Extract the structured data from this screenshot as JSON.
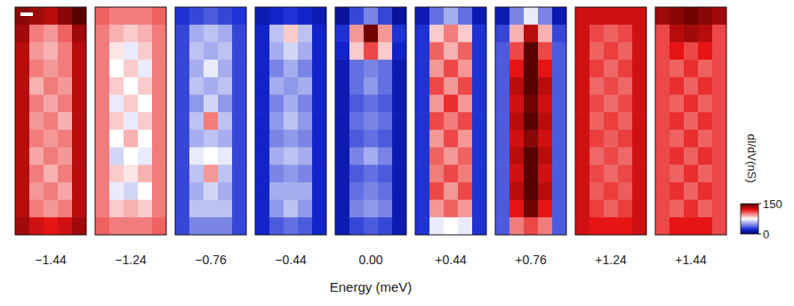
{
  "chart_data": {
    "type": "heatmap",
    "x_label": "Energy (meV)",
    "colorbar": {
      "label": "dI/dV(nS)",
      "range": [
        0,
        150
      ],
      "ticks": [
        0,
        150
      ]
    },
    "panels": [
      {
        "energy": -1.44,
        "label": "−1.44",
        "cells": [
          [
            140,
            135,
            130,
            140,
            150
          ],
          [
            135,
            100,
            95,
            105,
            135
          ],
          [
            130,
            95,
            90,
            100,
            130
          ],
          [
            130,
            100,
            95,
            100,
            130
          ],
          [
            130,
            90,
            100,
            95,
            130
          ],
          [
            130,
            100,
            92,
            100,
            130
          ],
          [
            130,
            95,
            100,
            90,
            130
          ],
          [
            130,
            100,
            95,
            100,
            130
          ],
          [
            130,
            92,
            100,
            95,
            130
          ],
          [
            130,
            100,
            90,
            100,
            130
          ],
          [
            130,
            95,
            100,
            92,
            130
          ],
          [
            130,
            100,
            95,
            100,
            130
          ],
          [
            135,
            125,
            120,
            125,
            135
          ]
        ]
      },
      {
        "energy": -1.24,
        "label": "−1.24",
        "cells": [
          [
            105,
            100,
            100,
            100,
            105
          ],
          [
            100,
            90,
            85,
            90,
            100
          ],
          [
            100,
            80,
            70,
            85,
            100
          ],
          [
            100,
            75,
            85,
            70,
            100
          ],
          [
            100,
            85,
            75,
            85,
            100
          ],
          [
            100,
            70,
            85,
            75,
            100
          ],
          [
            100,
            85,
            70,
            85,
            100
          ],
          [
            100,
            75,
            90,
            75,
            100
          ],
          [
            100,
            65,
            75,
            70,
            100
          ],
          [
            100,
            85,
            80,
            90,
            100
          ],
          [
            100,
            70,
            65,
            75,
            100
          ],
          [
            100,
            85,
            90,
            85,
            100
          ],
          [
            105,
            100,
            100,
            100,
            105
          ]
        ]
      },
      {
        "energy": -0.76,
        "label": "−0.76",
        "cells": [
          [
            25,
            30,
            35,
            30,
            25
          ],
          [
            30,
            55,
            60,
            55,
            30
          ],
          [
            30,
            60,
            55,
            60,
            30
          ],
          [
            30,
            55,
            70,
            55,
            30
          ],
          [
            30,
            60,
            55,
            60,
            30
          ],
          [
            30,
            50,
            65,
            50,
            30
          ],
          [
            30,
            60,
            100,
            60,
            30
          ],
          [
            30,
            55,
            60,
            55,
            30
          ],
          [
            30,
            70,
            75,
            70,
            30
          ],
          [
            30,
            60,
            95,
            60,
            30
          ],
          [
            30,
            55,
            65,
            55,
            30
          ],
          [
            30,
            60,
            60,
            60,
            30
          ],
          [
            30,
            45,
            45,
            45,
            30
          ]
        ]
      },
      {
        "energy": -0.44,
        "label": "−0.44",
        "cells": [
          [
            15,
            20,
            25,
            20,
            15
          ],
          [
            20,
            60,
            85,
            60,
            20
          ],
          [
            20,
            55,
            65,
            55,
            20
          ],
          [
            20,
            45,
            55,
            45,
            20
          ],
          [
            20,
            55,
            50,
            55,
            20
          ],
          [
            20,
            45,
            55,
            45,
            20
          ],
          [
            20,
            50,
            60,
            50,
            20
          ],
          [
            20,
            45,
            50,
            45,
            20
          ],
          [
            20,
            55,
            60,
            55,
            20
          ],
          [
            20,
            45,
            50,
            45,
            20
          ],
          [
            20,
            55,
            55,
            55,
            20
          ],
          [
            20,
            50,
            60,
            50,
            20
          ],
          [
            20,
            35,
            40,
            35,
            20
          ]
        ]
      },
      {
        "energy": 0.0,
        "label": "0.00",
        "cells": [
          [
            10,
            30,
            45,
            30,
            10
          ],
          [
            25,
            95,
            145,
            95,
            25
          ],
          [
            20,
            85,
            110,
            85,
            20
          ],
          [
            15,
            40,
            45,
            40,
            15
          ],
          [
            15,
            40,
            50,
            40,
            15
          ],
          [
            15,
            35,
            40,
            35,
            15
          ],
          [
            15,
            40,
            45,
            40,
            15
          ],
          [
            15,
            35,
            40,
            35,
            15
          ],
          [
            15,
            45,
            55,
            45,
            15
          ],
          [
            15,
            35,
            40,
            35,
            15
          ],
          [
            15,
            40,
            45,
            40,
            15
          ],
          [
            15,
            45,
            50,
            45,
            15
          ],
          [
            15,
            30,
            35,
            30,
            15
          ]
        ]
      },
      {
        "energy": 0.44,
        "label": "+0.44",
        "cells": [
          [
            15,
            40,
            55,
            40,
            15
          ],
          [
            25,
            85,
            100,
            85,
            25
          ],
          [
            25,
            105,
            90,
            105,
            25
          ],
          [
            25,
            95,
            110,
            95,
            25
          ],
          [
            25,
            110,
            95,
            110,
            25
          ],
          [
            25,
            95,
            115,
            95,
            25
          ],
          [
            25,
            110,
            100,
            110,
            25
          ],
          [
            25,
            95,
            110,
            95,
            25
          ],
          [
            25,
            105,
            95,
            105,
            25
          ],
          [
            25,
            100,
            110,
            100,
            25
          ],
          [
            25,
            110,
            95,
            110,
            25
          ],
          [
            25,
            95,
            105,
            95,
            25
          ],
          [
            25,
            70,
            75,
            70,
            25
          ]
        ]
      },
      {
        "energy": 0.76,
        "label": "+0.76",
        "cells": [
          [
            15,
            45,
            70,
            45,
            15
          ],
          [
            30,
            90,
            130,
            90,
            30
          ],
          [
            35,
            110,
            150,
            110,
            35
          ],
          [
            35,
            120,
            150,
            120,
            35
          ],
          [
            35,
            130,
            150,
            130,
            35
          ],
          [
            35,
            125,
            145,
            125,
            35
          ],
          [
            35,
            130,
            150,
            130,
            35
          ],
          [
            35,
            125,
            140,
            125,
            35
          ],
          [
            35,
            130,
            150,
            130,
            35
          ],
          [
            35,
            125,
            150,
            125,
            35
          ],
          [
            35,
            130,
            150,
            130,
            35
          ],
          [
            35,
            120,
            145,
            120,
            35
          ],
          [
            35,
            100,
            110,
            100,
            35
          ]
        ]
      },
      {
        "energy": 1.24,
        "label": "+1.24",
        "cells": [
          [
            125,
            125,
            125,
            125,
            125
          ],
          [
            125,
            110,
            105,
            110,
            125
          ],
          [
            125,
            105,
            112,
            105,
            125
          ],
          [
            125,
            112,
            104,
            112,
            125
          ],
          [
            125,
            104,
            110,
            104,
            125
          ],
          [
            125,
            110,
            103,
            110,
            125
          ],
          [
            125,
            105,
            112,
            105,
            125
          ],
          [
            125,
            112,
            106,
            112,
            125
          ],
          [
            125,
            104,
            110,
            104,
            125
          ],
          [
            125,
            110,
            104,
            110,
            125
          ],
          [
            125,
            106,
            112,
            106,
            125
          ],
          [
            125,
            112,
            105,
            112,
            125
          ],
          [
            125,
            120,
            120,
            120,
            125
          ]
        ]
      },
      {
        "energy": 1.44,
        "label": "+1.44",
        "cells": [
          [
            135,
            140,
            145,
            140,
            135
          ],
          [
            110,
            130,
            135,
            130,
            110
          ],
          [
            110,
            120,
            110,
            120,
            110
          ],
          [
            110,
            105,
            115,
            105,
            110
          ],
          [
            110,
            115,
            105,
            115,
            110
          ],
          [
            110,
            105,
            115,
            105,
            110
          ],
          [
            110,
            115,
            105,
            115,
            110
          ],
          [
            110,
            105,
            115,
            105,
            110
          ],
          [
            110,
            115,
            105,
            115,
            110
          ],
          [
            110,
            105,
            115,
            105,
            110
          ],
          [
            110,
            115,
            105,
            115,
            110
          ],
          [
            110,
            105,
            115,
            105,
            110
          ],
          [
            110,
            120,
            120,
            120,
            110
          ]
        ]
      }
    ]
  }
}
